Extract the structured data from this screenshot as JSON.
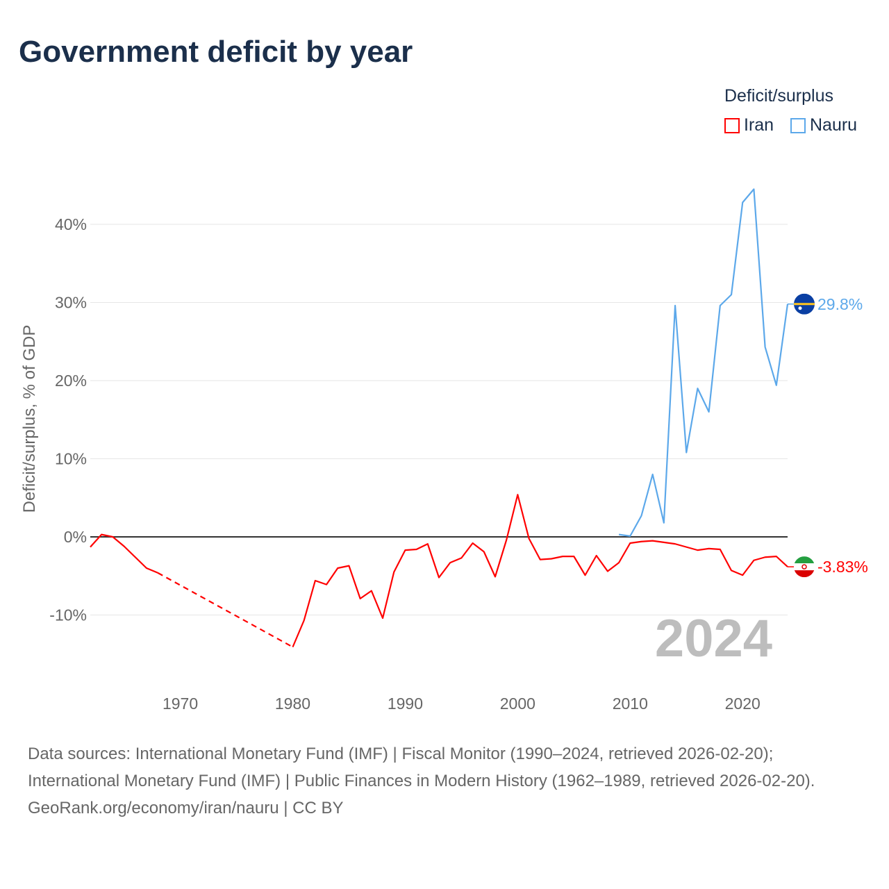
{
  "title": "Government deficit by year",
  "legend": {
    "title": "Deficit/surplus",
    "items": [
      {
        "name": "Iran",
        "color": "#ff0000"
      },
      {
        "name": "Nauru",
        "color": "#5ca8ea"
      }
    ]
  },
  "watermark_year": "2024",
  "footer": {
    "sources": "Data sources: International Monetary Fund (IMF) | Fiscal Monitor (1990–2024, retrieved 2026-02-20); International Monetary Fund (IMF) | Public Finances in Modern History (1962–1989, retrieved 2026-02-20).",
    "credit": "GeoRank.org/economy/iran/nauru | CC BY"
  },
  "chart_data": {
    "type": "line",
    "title": "Government deficit by year",
    "xlabel": "",
    "ylabel": "Deficit/surplus, % of GDP",
    "xlim": [
      1962,
      2024
    ],
    "ylim": [
      -18,
      48
    ],
    "xticks": [
      1970,
      1980,
      1990,
      2000,
      2010,
      2020
    ],
    "yticks": [
      -10,
      0,
      10,
      20,
      30,
      40
    ],
    "ytick_labels": [
      "-10%",
      "0%",
      "10%",
      "20%",
      "30%",
      "40%"
    ],
    "grid": true,
    "legend_position": "top-right",
    "series": [
      {
        "name": "Iran",
        "color": "#ff0000",
        "end_label": "-3.83%",
        "x": [
          1962,
          1963,
          1964,
          1965,
          1966,
          1967,
          1968,
          1980,
          1981,
          1982,
          1983,
          1984,
          1985,
          1986,
          1987,
          1988,
          1989,
          1990,
          1991,
          1992,
          1993,
          1994,
          1995,
          1996,
          1997,
          1998,
          1999,
          2000,
          2001,
          2002,
          2003,
          2004,
          2005,
          2006,
          2007,
          2008,
          2009,
          2010,
          2011,
          2012,
          2013,
          2014,
          2015,
          2016,
          2017,
          2018,
          2019,
          2020,
          2021,
          2022,
          2023,
          2024
        ],
        "y": [
          -1.3,
          0.3,
          0.0,
          -1.2,
          -2.6,
          -4.0,
          -4.6,
          -14.1,
          -10.7,
          -5.6,
          -6.1,
          -4.0,
          -3.7,
          -7.9,
          -6.9,
          -10.4,
          -4.5,
          -1.7,
          -1.6,
          -0.9,
          -5.2,
          -3.3,
          -2.7,
          -0.8,
          -1.9,
          -5.1,
          -0.4,
          5.4,
          -0.2,
          -2.9,
          -2.8,
          -2.5,
          -2.5,
          -4.9,
          -2.4,
          -4.4,
          -3.3,
          -0.8,
          -0.6,
          -0.5,
          -0.7,
          -0.9,
          -1.3,
          -1.7,
          -1.5,
          -1.6,
          -4.3,
          -4.9,
          -3.0,
          -2.6,
          -2.5,
          -3.83
        ]
      },
      {
        "name": "Nauru",
        "color": "#5ca8ea",
        "end_label": "29.8%",
        "x": [
          2009,
          2010,
          2011,
          2012,
          2013,
          2014,
          2015,
          2016,
          2017,
          2018,
          2019,
          2020,
          2021,
          2022,
          2023,
          2024
        ],
        "y": [
          0.3,
          0.1,
          2.7,
          8.0,
          1.8,
          29.6,
          10.8,
          19.0,
          16.0,
          29.6,
          31.0,
          42.8,
          44.5,
          24.3,
          19.4,
          29.8
        ]
      }
    ]
  }
}
